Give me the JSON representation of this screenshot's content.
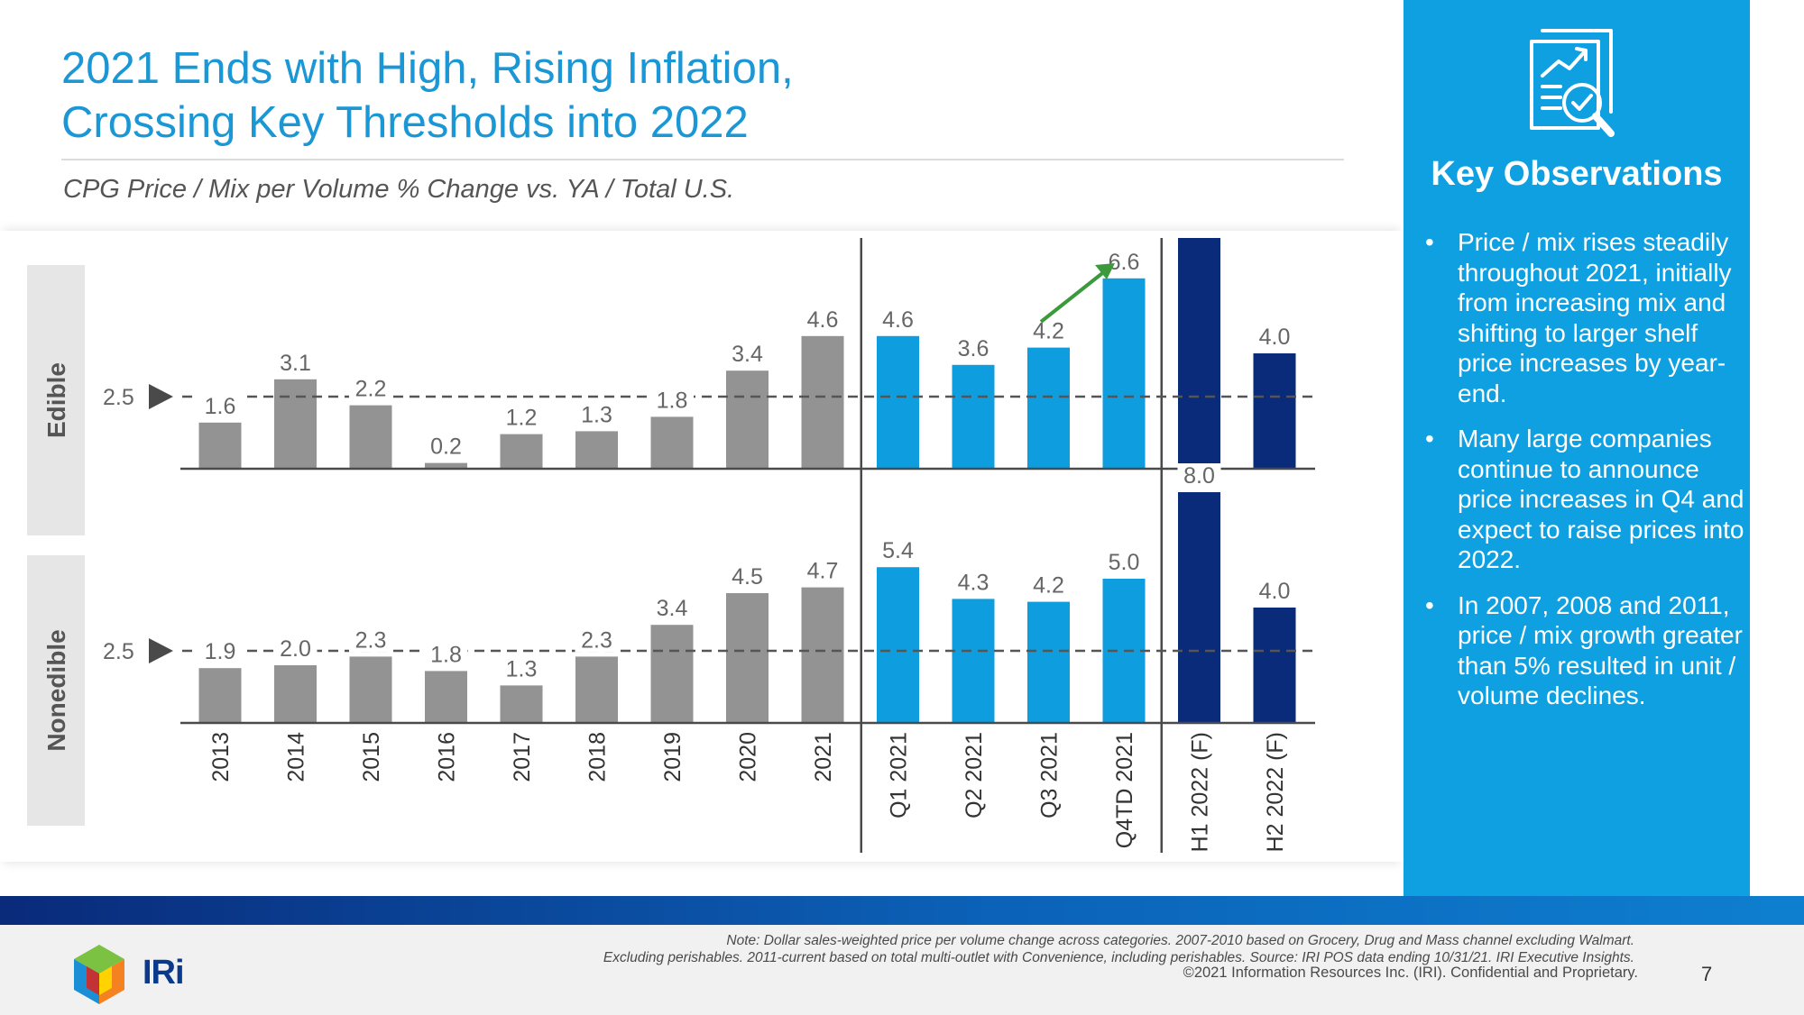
{
  "title_line1": "2021 Ends with High, Rising Inflation,",
  "title_line2": "Crossing Key Thresholds into 2022",
  "subtitle": "CPG Price / Mix per Volume % Change vs. YA / Total U.S.",
  "chart_data": {
    "type": "bar",
    "categories": [
      "2013",
      "2014",
      "2015",
      "2016",
      "2017",
      "2018",
      "2019",
      "2020",
      "2021",
      "Q1 2021",
      "Q2 2021",
      "Q3 2021",
      "Q4TD 2021",
      "H1 2022 (F)",
      "H2 2022 (F)"
    ],
    "series": [
      {
        "name": "Edible",
        "values": [
          1.6,
          3.1,
          2.2,
          0.2,
          1.2,
          1.3,
          1.8,
          3.4,
          4.6,
          4.6,
          3.6,
          4.2,
          6.6,
          8.0,
          4.0
        ]
      },
      {
        "name": "Nonedible",
        "values": [
          1.9,
          2.0,
          2.3,
          1.8,
          1.3,
          2.3,
          3.4,
          4.5,
          4.7,
          5.4,
          4.3,
          4.2,
          5.0,
          8.0,
          4.0
        ]
      }
    ],
    "threshold": 2.5,
    "threshold_label": "2.5",
    "panel_labels": [
      "Edible",
      "Nonedible"
    ],
    "value_labels": {
      "Edible": [
        "1.6",
        "3.1",
        "2.2",
        "0.2",
        "1.2",
        "1.3",
        "1.8",
        "3.4",
        "4.6",
        "4.6",
        "3.6",
        "4.2",
        "6.6",
        "8.0",
        "4.0"
      ],
      "Nonedible": [
        "1.9",
        "2.0",
        "2.3",
        "1.8",
        "1.3",
        "2.3",
        "3.4",
        "4.5",
        "4.7",
        "5.4",
        "4.3",
        "4.2",
        "5.0",
        "8.0",
        "4.0"
      ]
    },
    "colors": {
      "annual": "#939393",
      "quarterly": "#0e9edf",
      "forecast": "#0a2a7a",
      "trend_arrow": "#3c9a3c"
    },
    "ylim": [
      0,
      8.5
    ]
  },
  "panel": {
    "title": "Key Observations",
    "bullet_symbol": "•",
    "observations": [
      "Price / mix rises steadily throughout 2021, initially from increasing mix and shifting to larger shelf price increases by year-end.",
      "Many large companies continue to announce price increases in Q4 and expect to raise prices into 2022.",
      "In 2007, 2008 and 2011, price / mix growth greater than 5% resulted in unit / volume declines."
    ],
    "icon": "report-magnifier-icon"
  },
  "footer": {
    "note_line1": "Note: Dollar sales-weighted price per volume change across categories. 2007-2010 based on Grocery, Drug and Mass channel excluding Walmart.",
    "note_line2": "Excluding perishables. 2011-current based on total multi-outlet with Convenience, including perishables. Source: IRI POS data ending 10/31/21. IRI Executive Insights.",
    "copyright": "©2021 Information Resources Inc. (IRI). Confidential and Proprietary.",
    "page_number": "7",
    "logo_text": "IRi"
  }
}
